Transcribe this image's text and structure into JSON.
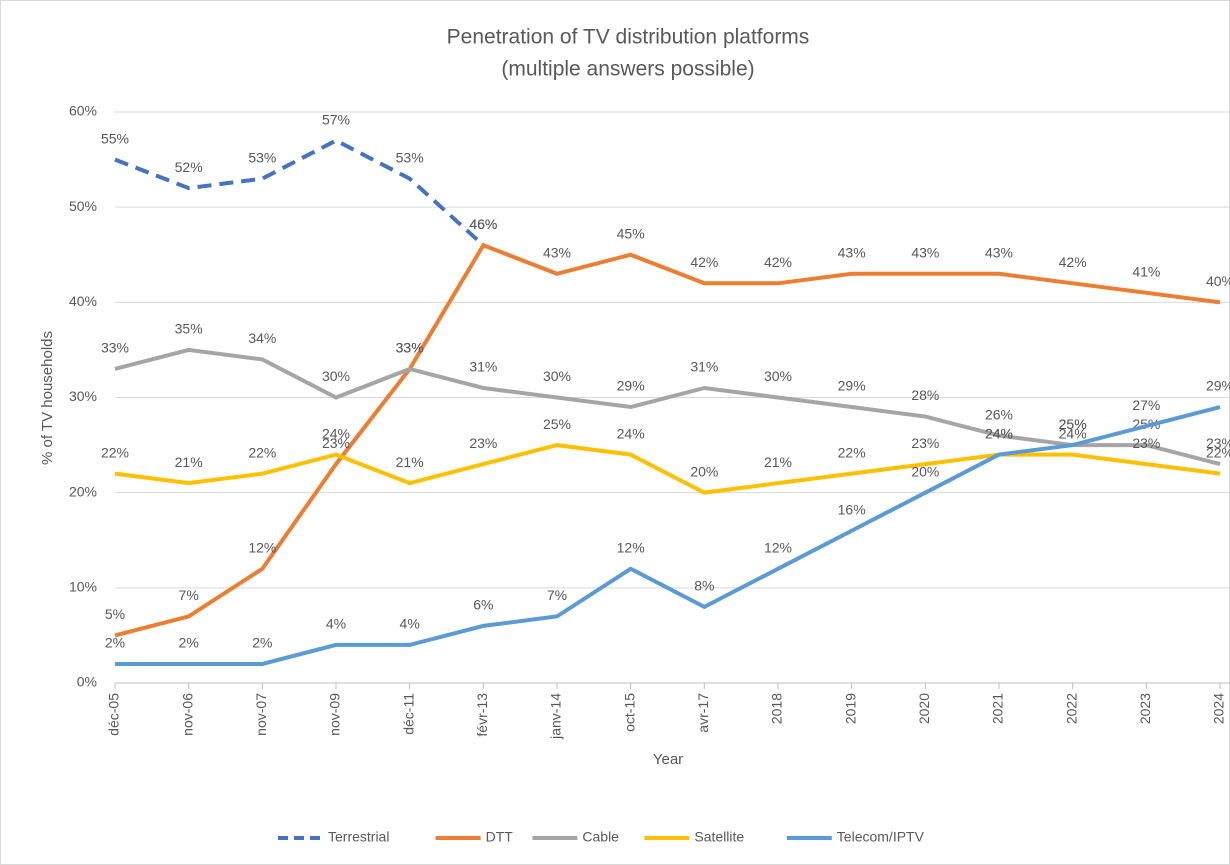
{
  "chart_data": {
    "type": "line",
    "title": "Penetration of TV distribution platforms",
    "subtitle": "(multiple answers possible)",
    "x_label": "Year",
    "y_label": "% of TV households",
    "categories": [
      "déc-05",
      "nov-06",
      "nov-07",
      "nov-09",
      "déc-11",
      "févr-13",
      "janv-14",
      "oct-15",
      "avr-17",
      "2018",
      "2019",
      "2020",
      "2021",
      "2022",
      "2023",
      "2024"
    ],
    "ylim": [
      0,
      60
    ],
    "yticks": [
      {
        "value": 0,
        "label": "0%"
      },
      {
        "value": 10,
        "label": "10%"
      },
      {
        "value": 20,
        "label": "20%"
      },
      {
        "value": 30,
        "label": "30%"
      },
      {
        "value": 40,
        "label": "40%"
      },
      {
        "value": 50,
        "label": "50%"
      },
      {
        "value": 60,
        "label": "60%"
      }
    ],
    "grid": true,
    "legend": "bottom",
    "series": [
      {
        "name": "Terrestrial",
        "color": "#4472c4",
        "dashed": true,
        "values": [
          55,
          52,
          53,
          57,
          53,
          46,
          null,
          null,
          null,
          null,
          null,
          null,
          null,
          null,
          null,
          null
        ],
        "value_labels": [
          "55%",
          "52%",
          "53%",
          "57%",
          "53%",
          "46%",
          null,
          null,
          null,
          null,
          null,
          null,
          null,
          null,
          null,
          null
        ]
      },
      {
        "name": "DTT",
        "color": "#ed7d31",
        "values": [
          5,
          7,
          12,
          23,
          33,
          46,
          43,
          45,
          42,
          42,
          43,
          43,
          43,
          42,
          41,
          40
        ],
        "value_labels": [
          "5%",
          "7%",
          "12%",
          "23%",
          "33%",
          "46%",
          "43%",
          "45%",
          "42%",
          "42%",
          "43%",
          "43%",
          "43%",
          "42%",
          "41%",
          "40%"
        ]
      },
      {
        "name": "Cable",
        "color": "#a5a5a5",
        "values": [
          33,
          35,
          34,
          30,
          33,
          31,
          30,
          29,
          31,
          30,
          29,
          28,
          26,
          25,
          25,
          23
        ],
        "value_labels": [
          "33%",
          "35%",
          "34%",
          "30%",
          "33%",
          "31%",
          "30%",
          "29%",
          "31%",
          "30%",
          "29%",
          "28%",
          "26%",
          "25%",
          "25%",
          "23%"
        ]
      },
      {
        "name": "Satellite",
        "color": "#ffc000",
        "values": [
          22,
          21,
          22,
          24,
          21,
          23,
          25,
          24,
          20,
          21,
          22,
          23,
          24,
          24,
          23,
          22
        ],
        "value_labels": [
          "22%",
          "21%",
          "22%",
          "24%",
          "21%",
          "23%",
          "25%",
          "24%",
          "20%",
          "21%",
          "22%",
          "23%",
          "24%",
          "24%",
          "23%",
          "22%"
        ]
      },
      {
        "name": "Telecom/IPTV",
        "color": "#5b9bd5",
        "values": [
          2,
          2,
          2,
          4,
          4,
          6,
          7,
          12,
          8,
          12,
          16,
          20,
          24,
          25,
          27,
          29
        ],
        "value_labels": [
          "2%",
          "2%",
          "2%",
          "4%",
          "4%",
          "6%",
          "7%",
          "12%",
          "8%",
          "12%",
          "16%",
          "20%",
          "24%",
          "25%",
          "27%",
          "29%"
        ]
      }
    ]
  }
}
